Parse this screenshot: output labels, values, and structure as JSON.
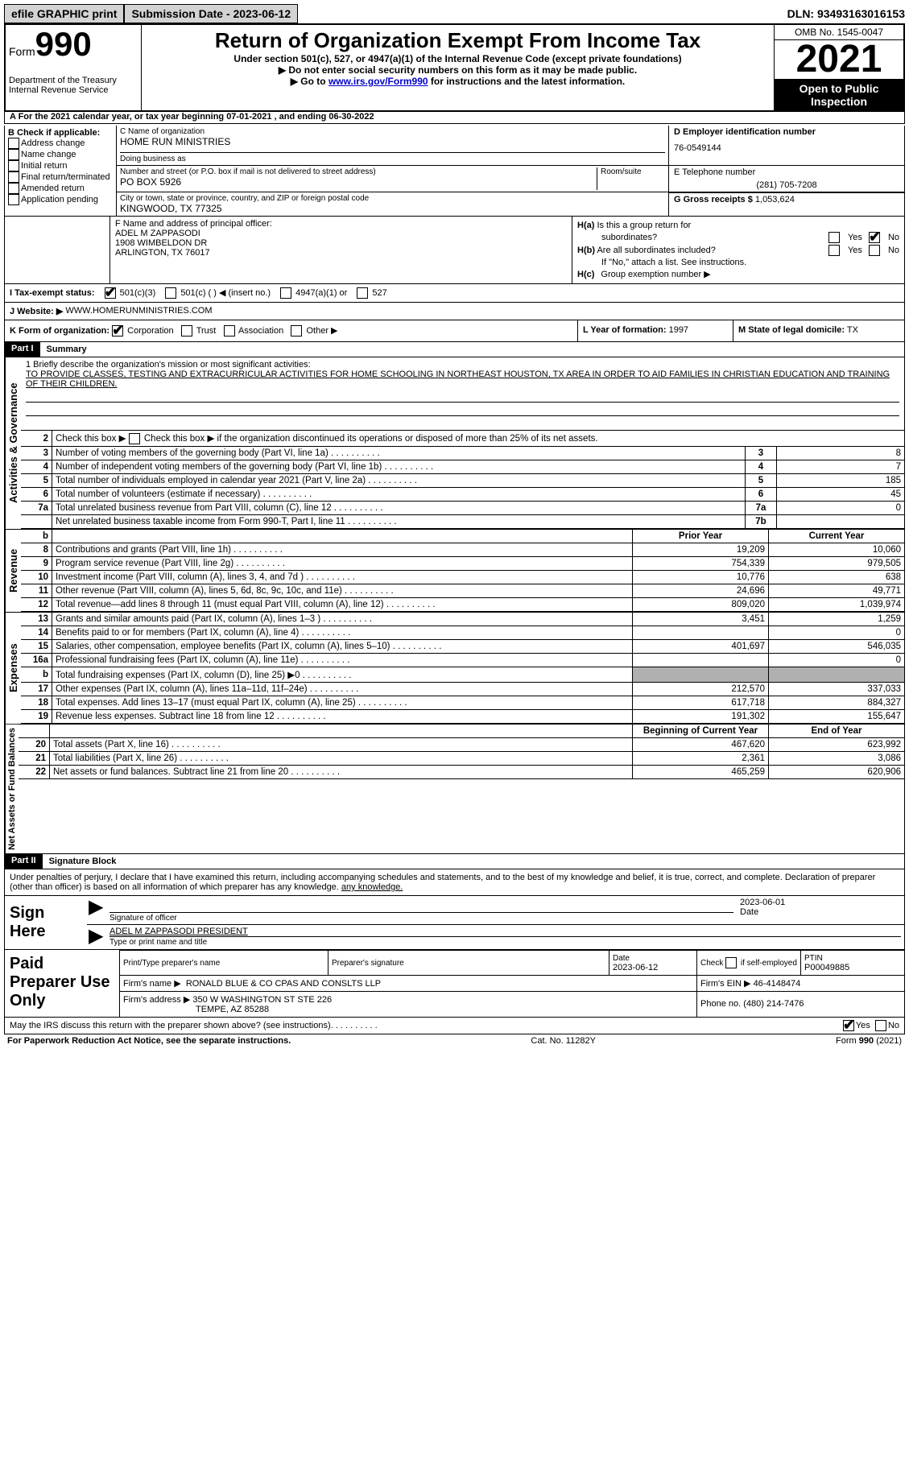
{
  "topbar": {
    "efile": "efile GRAPHIC print",
    "submission": "Submission Date - 2023-06-12",
    "dln": "DLN: 93493163016153"
  },
  "header": {
    "form_prefix": "Form",
    "form_no": "990",
    "dept": "Department of the Treasury\nInternal Revenue Service",
    "title": "Return of Organization Exempt From Income Tax",
    "subtitle": "Under section 501(c), 527, or 4947(a)(1) of the Internal Revenue Code (except private foundations)",
    "note1": "▶ Do not enter social security numbers on this form as it may be made public.",
    "note2_pre": "▶ Go to ",
    "note2_link": "www.irs.gov/Form990",
    "note2_post": " for instructions and the latest information.",
    "omb": "OMB No. 1545-0047",
    "year": "2021",
    "open": "Open to Public Inspection"
  },
  "line_a": "A For the 2021 calendar year, or tax year beginning 07-01-2021   , and ending 06-30-2022",
  "col_b": {
    "label": "B Check if applicable:",
    "opts": [
      "Address change",
      "Name change",
      "Initial return",
      "Final return/terminated",
      "Amended return",
      "Application pending"
    ]
  },
  "block_c": {
    "name_label": "C Name of organization",
    "name": "HOME RUN MINISTRIES",
    "dba_label": "Doing business as",
    "dba": "",
    "addr_label": "Number and street (or P.O. box if mail is not delivered to street address)",
    "room_label": "Room/suite",
    "addr": "PO BOX 5926",
    "city_label": "City or town, state or province, country, and ZIP or foreign postal code",
    "city": "KINGWOOD, TX  77325"
  },
  "block_d": {
    "label": "D Employer identification number",
    "ein": "76-0549144"
  },
  "block_e": {
    "label": "E Telephone number",
    "phone": "(281) 705-7208"
  },
  "block_g": {
    "label": "G Gross receipts $",
    "val": "1,053,624"
  },
  "block_f": {
    "label": "F  Name and address of principal officer:",
    "name": "ADEL M ZAPPASODI",
    "street": "1908 WIMBELDON DR",
    "csz": "ARLINGTON, TX  76017"
  },
  "block_h": {
    "ha": "H(a)  Is this a group return for subordinates?",
    "hb": "H(b)  Are all subordinates included?",
    "hb_note": "If \"No,\" attach a list. See instructions.",
    "hc": "H(c)  Group exemption number ▶"
  },
  "line_i": {
    "label": "I   Tax-exempt status:",
    "o1": "501(c)(3)",
    "o2": "501(c) (  ) ◀ (insert no.)",
    "o3": "4947(a)(1) or",
    "o4": "527"
  },
  "line_j": {
    "label": "J   Website: ▶",
    "val": "WWW.HOMERUNMINISTRIES.COM"
  },
  "line_k": {
    "label": "K Form of organization:",
    "o1": "Corporation",
    "o2": "Trust",
    "o3": "Association",
    "o4": "Other ▶"
  },
  "line_l": {
    "label": "L Year of formation:",
    "val": "1997"
  },
  "line_m": {
    "label": "M State of legal domicile:",
    "val": "TX"
  },
  "part1": {
    "tag": "Part I",
    "title": "Summary",
    "mission_label": "1   Briefly describe the organization's mission or most significant activities:",
    "mission": "TO PROVIDE CLASSES, TESTING AND EXTRACURRICULAR ACTIVITIES FOR HOME SCHOOLING IN NORTHEAST HOUSTON, TX AREA IN ORDER TO AID FAMILIES IN CHRISTIAN EDUCATION AND TRAINING OF THEIR CHILDREN.",
    "line2": "Check this box ▶     if the organization discontinued its operations or disposed of more than 25% of its net assets.",
    "vert1": "Activities & Governance",
    "vert2": "Revenue",
    "vert3": "Expenses",
    "vert4": "Net Assets or Fund Balances",
    "rows_gov": [
      {
        "n": "3",
        "t": "Number of voting members of the governing body (Part VI, line 1a)",
        "box": "3",
        "v": "8"
      },
      {
        "n": "4",
        "t": "Number of independent voting members of the governing body (Part VI, line 1b)",
        "box": "4",
        "v": "7"
      },
      {
        "n": "5",
        "t": "Total number of individuals employed in calendar year 2021 (Part V, line 2a)",
        "box": "5",
        "v": "185"
      },
      {
        "n": "6",
        "t": "Total number of volunteers (estimate if necessary)",
        "box": "6",
        "v": "45"
      },
      {
        "n": "7a",
        "t": "Total unrelated business revenue from Part VIII, column (C), line 12",
        "box": "7a",
        "v": "0"
      },
      {
        "n": "",
        "t": "Net unrelated business taxable income from Form 990-T, Part I, line 11",
        "box": "7b",
        "v": ""
      }
    ],
    "hdr_prior": "Prior Year",
    "hdr_curr": "Current Year",
    "rows_rev": [
      {
        "n": "8",
        "t": "Contributions and grants (Part VIII, line 1h)",
        "p": "19,209",
        "c": "10,060"
      },
      {
        "n": "9",
        "t": "Program service revenue (Part VIII, line 2g)",
        "p": "754,339",
        "c": "979,505"
      },
      {
        "n": "10",
        "t": "Investment income (Part VIII, column (A), lines 3, 4, and 7d )",
        "p": "10,776",
        "c": "638"
      },
      {
        "n": "11",
        "t": "Other revenue (Part VIII, column (A), lines 5, 6d, 8c, 9c, 10c, and 11e)",
        "p": "24,696",
        "c": "49,771"
      },
      {
        "n": "12",
        "t": "Total revenue—add lines 8 through 11 (must equal Part VIII, column (A), line 12)",
        "p": "809,020",
        "c": "1,039,974"
      }
    ],
    "rows_exp": [
      {
        "n": "13",
        "t": "Grants and similar amounts paid (Part IX, column (A), lines 1–3 )",
        "p": "3,451",
        "c": "1,259"
      },
      {
        "n": "14",
        "t": "Benefits paid to or for members (Part IX, column (A), line 4)",
        "p": "",
        "c": "0"
      },
      {
        "n": "15",
        "t": "Salaries, other compensation, employee benefits (Part IX, column (A), lines 5–10)",
        "p": "401,697",
        "c": "546,035"
      },
      {
        "n": "16a",
        "t": "Professional fundraising fees (Part IX, column (A), line 11e)",
        "p": "",
        "c": "0"
      },
      {
        "n": "b",
        "t": "Total fundraising expenses (Part IX, column (D), line 25) ▶0",
        "p": "SHADED",
        "c": "SHADED"
      },
      {
        "n": "17",
        "t": "Other expenses (Part IX, column (A), lines 11a–11d, 11f–24e)",
        "p": "212,570",
        "c": "337,033"
      },
      {
        "n": "18",
        "t": "Total expenses. Add lines 13–17 (must equal Part IX, column (A), line 25)",
        "p": "617,718",
        "c": "884,327"
      },
      {
        "n": "19",
        "t": "Revenue less expenses. Subtract line 18 from line 12",
        "p": "191,302",
        "c": "155,647"
      }
    ],
    "hdr_beg": "Beginning of Current Year",
    "hdr_end": "End of Year",
    "rows_net": [
      {
        "n": "20",
        "t": "Total assets (Part X, line 16)",
        "p": "467,620",
        "c": "623,992"
      },
      {
        "n": "21",
        "t": "Total liabilities (Part X, line 26)",
        "p": "2,361",
        "c": "3,086"
      },
      {
        "n": "22",
        "t": "Net assets or fund balances. Subtract line 21 from line 20",
        "p": "465,259",
        "c": "620,906"
      }
    ]
  },
  "part2": {
    "tag": "Part II",
    "title": "Signature Block",
    "decl": "Under penalties of perjury, I declare that I have examined this return, including accompanying schedules and statements, and to the best of my knowledge and belief, it is true, correct, and complete. Declaration of preparer (other than officer) is based on all information of which preparer has any knowledge.",
    "sign_here": "Sign Here",
    "sig_date": "2023-06-01",
    "sig_label": "Signature of officer",
    "date_label": "Date",
    "name_title": "ADEL M ZAPPASODI  PRESIDENT",
    "name_label": "Type or print name and title",
    "paid": "Paid Preparer Use Only",
    "prep_name_label": "Print/Type preparer's name",
    "prep_name": "",
    "prep_sig_label": "Preparer's signature",
    "prep_date_label": "Date",
    "prep_date": "2023-06-12",
    "self_emp": "Check         if self-employed",
    "ptin_label": "PTIN",
    "ptin": "P00049885",
    "firm_name_label": "Firm's name    ▶",
    "firm_name": "RONALD BLUE & CO CPAS AND CONSLTS LLP",
    "firm_ein_label": "Firm's EIN ▶",
    "firm_ein": "46-4148474",
    "firm_addr_label": "Firm's address ▶",
    "firm_addr1": "350 W WASHINGTON ST STE 226",
    "firm_addr2": "TEMPE, AZ  85288",
    "firm_phone_label": "Phone no.",
    "firm_phone": "(480) 214-7476",
    "discuss": "May the IRS discuss this return with the preparer shown above? (see instructions)"
  },
  "footer": {
    "left": "For Paperwork Reduction Act Notice, see the separate instructions.",
    "mid": "Cat. No. 11282Y",
    "right": "Form 990 (2021)"
  },
  "yes": "Yes",
  "no": "No"
}
